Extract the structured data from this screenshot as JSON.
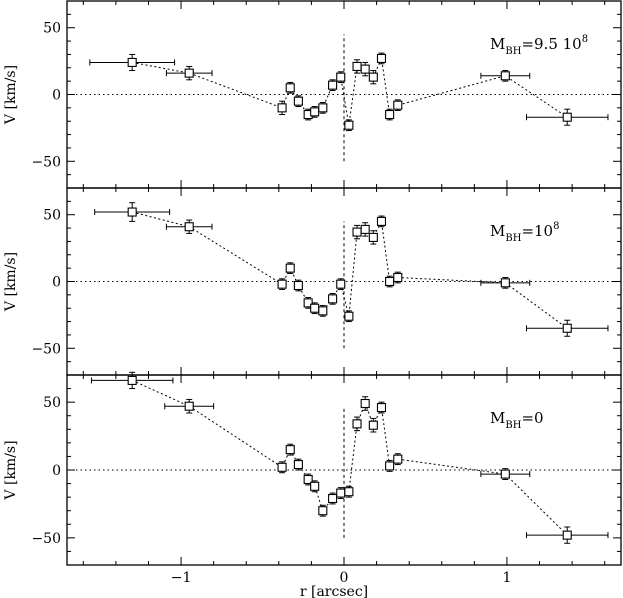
{
  "chart_data": [
    {
      "type": "scatter",
      "annotation": {
        "prefix": "M",
        "subscript": "BH",
        "value": "=9.5  10",
        "superscript": "8"
      },
      "ylabel": "V [km/s]",
      "xlabel": "",
      "xlim": [
        -1.7,
        1.7
      ],
      "ylim": [
        -70,
        70
      ],
      "xticks": [
        -1,
        0,
        1
      ],
      "xtick_labels": [
        "",
        "",
        ""
      ],
      "yticks": [
        -50,
        0,
        50
      ],
      "ytick_labels": [
        "−50",
        "0",
        "50"
      ],
      "reference_lines": {
        "y": 0,
        "x": 0,
        "x_range": [
          -50,
          45
        ]
      },
      "series": [
        {
          "x": [
            -1.3,
            -0.95,
            -0.38,
            -0.33,
            -0.28,
            -0.22,
            -0.18,
            -0.13,
            -0.07,
            -0.02,
            0.03,
            0.08,
            0.13,
            0.18,
            0.23,
            0.28,
            0.33,
            0.99,
            1.37
          ],
          "y": [
            24,
            16,
            -10,
            5,
            -5,
            -15,
            -13,
            -10,
            7,
            13,
            -23,
            21,
            19,
            13,
            27,
            -15,
            -8,
            14,
            -17
          ],
          "xerr": [
            0.26,
            0.14,
            0,
            0,
            0,
            0,
            0,
            0,
            0,
            0,
            0,
            0,
            0,
            0,
            0,
            0,
            0,
            0.15,
            0.25
          ],
          "yerr": [
            6,
            5,
            5,
            4,
            4,
            4,
            4,
            4,
            4,
            4,
            4,
            5,
            5,
            5,
            4,
            4,
            4,
            4,
            6
          ]
        }
      ]
    },
    {
      "type": "scatter",
      "annotation": {
        "prefix": "M",
        "subscript": "BH",
        "value": "=10",
        "superscript": "8"
      },
      "ylabel": "V [km/s]",
      "xlabel": "",
      "xlim": [
        -1.7,
        1.7
      ],
      "ylim": [
        -70,
        70
      ],
      "xticks": [
        -1,
        0,
        1
      ],
      "xtick_labels": [
        "",
        "",
        ""
      ],
      "yticks": [
        -50,
        0,
        50
      ],
      "ytick_labels": [
        "−50",
        "0",
        "50"
      ],
      "reference_lines": {
        "y": 0,
        "x": 0,
        "x_range": [
          -50,
          45
        ]
      },
      "series": [
        {
          "x": [
            -1.3,
            -0.95,
            -0.38,
            -0.33,
            -0.28,
            -0.22,
            -0.18,
            -0.13,
            -0.07,
            -0.02,
            0.03,
            0.08,
            0.13,
            0.18,
            0.23,
            0.28,
            0.33,
            0.99,
            1.37
          ],
          "y": [
            52,
            41,
            -2,
            10,
            -3,
            -16,
            -20,
            -22,
            -13,
            -2,
            -26,
            37,
            39,
            33,
            45,
            0,
            3,
            -1,
            -35
          ],
          "xerr": [
            0.23,
            0.14,
            0,
            0,
            0,
            0,
            0,
            0,
            0,
            0,
            0,
            0,
            0,
            0,
            0,
            0,
            0,
            0.15,
            0.25
          ],
          "yerr": [
            7,
            5,
            4,
            4,
            4,
            4,
            4,
            4,
            4,
            4,
            4,
            5,
            5,
            5,
            4,
            4,
            4,
            4,
            6
          ]
        }
      ]
    },
    {
      "type": "scatter",
      "annotation": {
        "prefix": "M",
        "subscript": "BH",
        "value": "=0",
        "superscript": ""
      },
      "ylabel": "V [km/s]",
      "xlabel": "r [arcsec]",
      "xlim": [
        -1.7,
        1.7
      ],
      "ylim": [
        -70,
        70
      ],
      "xticks": [
        -1,
        0,
        1
      ],
      "xtick_labels": [
        "−1",
        "0",
        "1"
      ],
      "yticks": [
        -50,
        0,
        50
      ],
      "ytick_labels": [
        "−50",
        "0",
        "50"
      ],
      "reference_lines": {
        "y": 0,
        "x": 0,
        "x_range": [
          -50,
          45
        ]
      },
      "series": [
        {
          "x": [
            -1.3,
            -0.95,
            -0.38,
            -0.33,
            -0.28,
            -0.22,
            -0.18,
            -0.13,
            -0.07,
            -0.02,
            0.03,
            0.08,
            0.13,
            0.18,
            0.23,
            0.28,
            0.33,
            0.99,
            1.37
          ],
          "y": [
            66,
            47,
            2,
            15,
            4,
            -7,
            -12,
            -30,
            -21,
            -17,
            -16,
            34,
            49,
            33,
            46,
            3,
            8,
            -3,
            -48
          ],
          "xerr": [
            0.25,
            0.15,
            0,
            0,
            0,
            0,
            0,
            0,
            0,
            0,
            0,
            0,
            0,
            0,
            0,
            0,
            0,
            0.15,
            0.25
          ],
          "yerr": [
            6,
            5,
            4,
            4,
            4,
            4,
            4,
            4,
            4,
            4,
            4,
            5,
            5,
            5,
            4,
            4,
            4,
            4,
            6
          ]
        }
      ]
    }
  ]
}
